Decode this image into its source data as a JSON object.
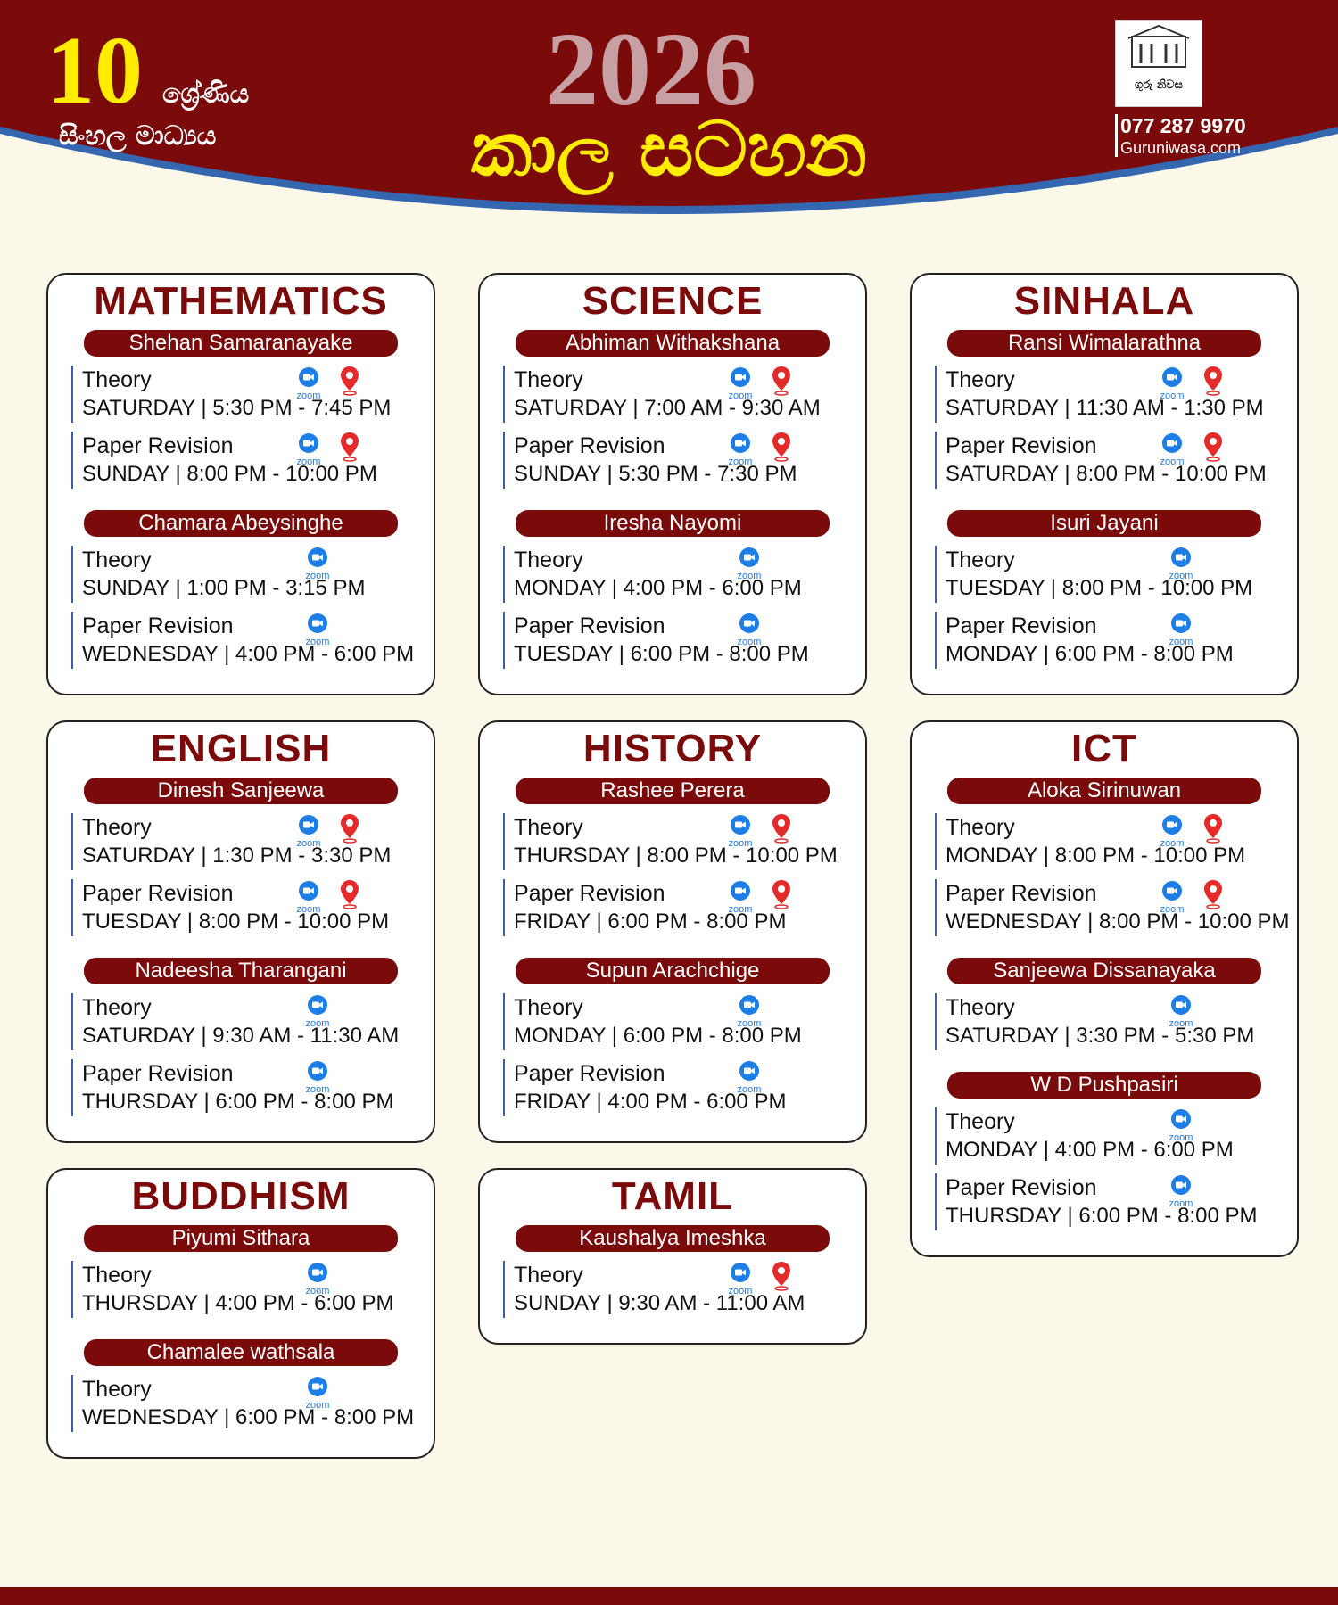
{
  "header": {
    "grade_number": "10",
    "grade_word": "ශ්‍රේණිය",
    "medium": "සිංහල මාධ්‍යය",
    "year": "2026",
    "title": "කාල සටහන",
    "logo_text": "ගුරු නිවස",
    "phone": "077 287 9970",
    "website": "Guruniwasa.com"
  },
  "zoom_label": "zoom",
  "cards": [
    {
      "subject": "MATHEMATICS",
      "teachers": [
        {
          "name": "Shehan Samaranayake",
          "sessions": [
            {
              "type": "Theory",
              "time": "SATURDAY | 5:30 PM - 7:45 PM",
              "zoom": true,
              "map_pin": true
            },
            {
              "type": "Paper Revision",
              "time": "SUNDAY | 8:00 PM - 10:00 PM",
              "zoom": true,
              "map_pin": true
            }
          ]
        },
        {
          "name": "Chamara Abeysinghe",
          "sessions": [
            {
              "type": "Theory",
              "time": "SUNDAY | 1:00 PM - 3:15 PM",
              "zoom": true,
              "map_pin": false
            },
            {
              "type": "Paper Revision",
              "time": "WEDNESDAY | 4:00 PM - 6:00 PM",
              "zoom": true,
              "map_pin": false
            }
          ]
        }
      ]
    },
    {
      "subject": "SCIENCE",
      "teachers": [
        {
          "name": "Abhiman Withakshana",
          "sessions": [
            {
              "type": "Theory",
              "time": "SATURDAY | 7:00 AM - 9:30 AM",
              "zoom": true,
              "map_pin": true
            },
            {
              "type": "Paper Revision",
              "time": "SUNDAY | 5:30 PM - 7:30 PM",
              "zoom": true,
              "map_pin": true
            }
          ]
        },
        {
          "name": "Iresha Nayomi",
          "sessions": [
            {
              "type": "Theory",
              "time": "MONDAY | 4:00 PM - 6:00 PM",
              "zoom": true,
              "map_pin": false
            },
            {
              "type": "Paper Revision",
              "time": "TUESDAY | 6:00 PM - 8:00 PM",
              "zoom": true,
              "map_pin": false
            }
          ]
        }
      ]
    },
    {
      "subject": "SINHALA",
      "teachers": [
        {
          "name": "Ransi Wimalarathna",
          "sessions": [
            {
              "type": "Theory",
              "time": "SATURDAY | 11:30 AM - 1:30 PM",
              "zoom": true,
              "map_pin": true
            },
            {
              "type": "Paper Revision",
              "time": "SATURDAY | 8:00 PM - 10:00 PM",
              "zoom": true,
              "map_pin": true
            }
          ]
        },
        {
          "name": "Isuri Jayani",
          "sessions": [
            {
              "type": "Theory",
              "time": "TUESDAY | 8:00 PM - 10:00 PM",
              "zoom": true,
              "map_pin": false
            },
            {
              "type": "Paper Revision",
              "time": "MONDAY | 6:00 PM - 8:00 PM",
              "zoom": true,
              "map_pin": false
            }
          ]
        }
      ]
    },
    {
      "subject": "ENGLISH",
      "teachers": [
        {
          "name": "Dinesh Sanjeewa",
          "sessions": [
            {
              "type": "Theory",
              "time": "SATURDAY | 1:30 PM - 3:30 PM",
              "zoom": true,
              "map_pin": true
            },
            {
              "type": "Paper Revision",
              "time": "TUESDAY | 8:00 PM - 10:00 PM",
              "zoom": true,
              "map_pin": true
            }
          ]
        },
        {
          "name": "Nadeesha Tharangani",
          "sessions": [
            {
              "type": "Theory",
              "time": "SATURDAY | 9:30 AM - 11:30 AM",
              "zoom": true,
              "map_pin": false
            },
            {
              "type": "Paper Revision",
              "time": "THURSDAY | 6:00 PM - 8:00 PM",
              "zoom": true,
              "map_pin": false
            }
          ]
        }
      ]
    },
    {
      "subject": "HISTORY",
      "teachers": [
        {
          "name": "Rashee Perera",
          "sessions": [
            {
              "type": "Theory",
              "time": "THURSDAY | 8:00 PM - 10:00 PM",
              "zoom": true,
              "map_pin": true
            },
            {
              "type": "Paper Revision",
              "time": "FRIDAY | 6:00 PM - 8:00 PM",
              "zoom": true,
              "map_pin": true
            }
          ]
        },
        {
          "name": "Supun Arachchige",
          "sessions": [
            {
              "type": "Theory",
              "time": "MONDAY | 6:00 PM - 8:00 PM",
              "zoom": true,
              "map_pin": false
            },
            {
              "type": "Paper Revision",
              "time": "FRIDAY | 4:00 PM - 6:00 PM",
              "zoom": true,
              "map_pin": false
            }
          ]
        }
      ]
    },
    {
      "subject": "ICT",
      "teachers": [
        {
          "name": "Aloka Sirinuwan",
          "sessions": [
            {
              "type": "Theory",
              "time": "MONDAY | 8:00 PM - 10:00 PM",
              "zoom": true,
              "map_pin": true
            },
            {
              "type": "Paper Revision",
              "time": "WEDNESDAY | 8:00 PM - 10:00 PM",
              "zoom": true,
              "map_pin": true
            }
          ]
        },
        {
          "name": "Sanjeewa Dissanayaka",
          "sessions": [
            {
              "type": "Theory",
              "time": "SATURDAY | 3:30 PM - 5:30 PM",
              "zoom": true,
              "map_pin": false
            }
          ]
        },
        {
          "name": "W D Pushpasiri",
          "sessions": [
            {
              "type": "Theory",
              "time": "MONDAY | 4:00 PM - 6:00 PM",
              "zoom": true,
              "map_pin": false
            },
            {
              "type": "Paper Revision",
              "time": "THURSDAY | 6:00 PM - 8:00 PM",
              "zoom": true,
              "map_pin": false
            }
          ]
        }
      ]
    },
    {
      "subject": "BUDDHISM",
      "teachers": [
        {
          "name": "Piyumi Sithara",
          "sessions": [
            {
              "type": "Theory",
              "time": "THURSDAY | 4:00 PM - 6:00 PM",
              "zoom": true,
              "map_pin": false
            }
          ]
        },
        {
          "name": "Chamalee wathsala",
          "sessions": [
            {
              "type": "Theory",
              "time": "WEDNESDAY | 6:00 PM - 8:00 PM",
              "zoom": true,
              "map_pin": false
            }
          ]
        }
      ]
    },
    {
      "subject": "TAMIL",
      "teachers": [
        {
          "name": "Kaushalya Imeshka",
          "sessions": [
            {
              "type": "Theory",
              "time": "SUNDAY | 9:30 AM - 11:00 AM",
              "zoom": true,
              "map_pin": true
            }
          ]
        }
      ]
    }
  ]
}
